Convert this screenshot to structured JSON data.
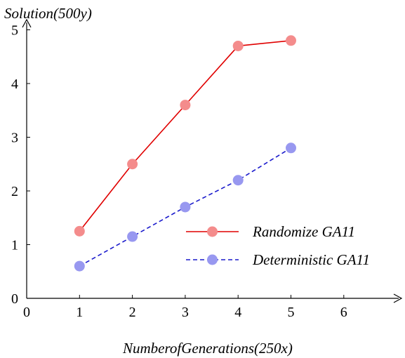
{
  "chart_data": {
    "type": "line",
    "ylabel": "Solution(500y)",
    "xlabel": "NumberofGenerations(250x)",
    "xlim": [
      0,
      7
    ],
    "ylim": [
      0,
      5.2
    ],
    "x_ticks": [
      0,
      1,
      2,
      3,
      4,
      5,
      6
    ],
    "y_ticks": [
      0,
      1,
      2,
      3,
      4,
      5
    ],
    "grid": false,
    "legend_position": "bottom-right",
    "series": [
      {
        "name": "Randomize GA11",
        "color": "#e00000",
        "marker_color": "#f48c8c",
        "line_style": "solid",
        "x": [
          1,
          2,
          3,
          4,
          5
        ],
        "y": [
          1.25,
          2.5,
          3.6,
          4.7,
          4.8
        ]
      },
      {
        "name": "Deterministic GA11",
        "color": "#1a1acc",
        "marker_color": "#9898f0",
        "line_style": "dashed",
        "x": [
          1,
          2,
          3,
          4,
          5
        ],
        "y": [
          0.6,
          1.15,
          1.7,
          2.2,
          2.8
        ]
      }
    ]
  }
}
